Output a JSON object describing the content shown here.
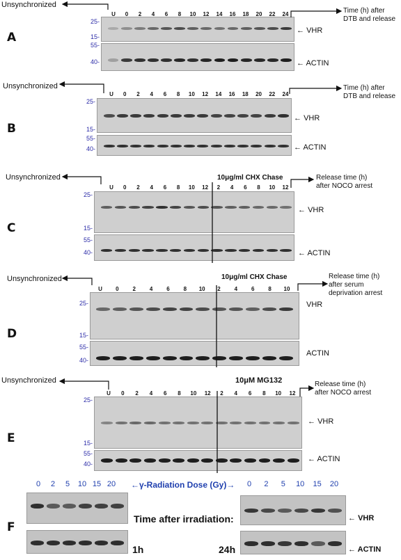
{
  "unsync_label": "Unsynchronized",
  "vhr": "VHR",
  "actin": "ACTIN",
  "panels": {
    "A": {
      "letter": "A",
      "lanes": [
        "U",
        "0",
        "2",
        "4",
        "6",
        "8",
        "10",
        "12",
        "14",
        "16",
        "18",
        "20",
        "22",
        "24"
      ],
      "mw_top": [
        "25-",
        "15-"
      ],
      "mw_bottom": [
        "55-",
        "40-"
      ],
      "release": "Time (h) after\nDTB and release"
    },
    "B": {
      "letter": "B",
      "lanes": [
        "U",
        "0",
        "2",
        "4",
        "6",
        "8",
        "10",
        "12",
        "14",
        "16",
        "18",
        "20",
        "22",
        "24"
      ],
      "mw_top": [
        "25-",
        "15-"
      ],
      "mw_bottom": [
        "55-",
        "40-"
      ],
      "release": "Time (h) after\nDTB and release"
    },
    "C": {
      "letter": "C",
      "lanes": [
        "U",
        "0",
        "2",
        "4",
        "6",
        "8",
        "10",
        "12",
        "2",
        "4",
        "6",
        "8",
        "10",
        "12"
      ],
      "mw_top": [
        "25-",
        "15-"
      ],
      "mw_bottom": [
        "55-",
        "40-"
      ],
      "condition": "10μg/ml CHX Chase",
      "release": "Release time (h)\nafter NOCO arrest"
    },
    "D": {
      "letter": "D",
      "lanes": [
        "U",
        "0",
        "2",
        "4",
        "6",
        "8",
        "10",
        "2",
        "4",
        "6",
        "8",
        "10"
      ],
      "mw_top": [
        "25-",
        "15-"
      ],
      "mw_bottom": [
        "55-",
        "40-"
      ],
      "condition": "10μg/ml CHX Chase",
      "release": "Release time (h)\nafter serum\ndeprivation arrest"
    },
    "E": {
      "letter": "E",
      "lanes": [
        "U",
        "0",
        "2",
        "4",
        "6",
        "8",
        "10",
        "12",
        "2",
        "4",
        "6",
        "8",
        "10",
        "12"
      ],
      "mw_top": [
        "25-",
        "15-"
      ],
      "mw_bottom": [
        "55-",
        "40-"
      ],
      "condition": "10μM MG132",
      "release": "Release time (h)\nafter NOCO arrest"
    },
    "F": {
      "letter": "F",
      "doses": [
        "0",
        "2",
        "5",
        "10",
        "15",
        "20"
      ],
      "dose_caption": "←γ-Radiation Dose (Gy)→",
      "center_label": "Time after irradiation:",
      "time_left": "1h",
      "time_right": "24h"
    }
  },
  "colors": {
    "band": "#141414",
    "mw_text": "#2c2ca8",
    "dose_text": "#1f3fae"
  }
}
